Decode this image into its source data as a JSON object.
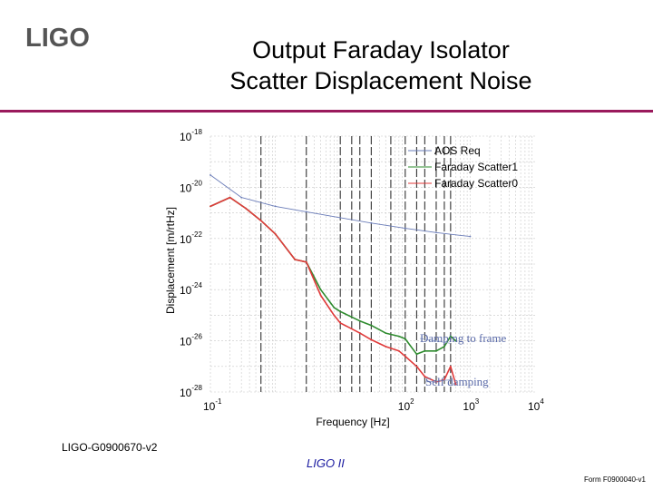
{
  "header": {
    "logo_text": "LIGO",
    "title_line1": "Output Faraday Isolator",
    "title_line2": "Scatter Displacement Noise"
  },
  "footer": {
    "doc_id": "LIGO-G0900670-v2",
    "center_text": "LIGO II",
    "form_id": "Form F0900040-v1"
  },
  "colors": {
    "accent_rule": "#9a1a5c",
    "logo": "#555555"
  },
  "chart_data": {
    "type": "line",
    "xscale": "log",
    "yscale": "log",
    "xlim": [
      0.1,
      10000
    ],
    "ylim": [
      1e-28,
      1e-18
    ],
    "xlabel": "Frequency [Hz]",
    "ylabel": "Displacement [m/rtHz]",
    "x_ticks": [
      {
        "value": 0.1,
        "base": "10",
        "exp": "-1"
      },
      {
        "value": 100,
        "base": "10",
        "exp": "2"
      },
      {
        "value": 1000,
        "base": "10",
        "exp": "3"
      },
      {
        "value": 10000,
        "base": "10",
        "exp": "4"
      }
    ],
    "y_ticks": [
      {
        "value": 1e-18,
        "base": "10",
        "exp": "-18"
      },
      {
        "value": 1e-20,
        "base": "10",
        "exp": "-20"
      },
      {
        "value": 1e-22,
        "base": "10",
        "exp": "-22"
      },
      {
        "value": 1e-24,
        "base": "10",
        "exp": "-24"
      },
      {
        "value": 1e-26,
        "base": "10",
        "exp": "-26"
      },
      {
        "value": 1e-28,
        "base": "10",
        "exp": "-28"
      }
    ],
    "grid": true,
    "legend_position": "top-right",
    "series": [
      {
        "name": "AOS Req",
        "color": "#6a7cb8",
        "x": [
          0.1,
          0.3,
          1,
          3,
          10,
          30,
          100,
          300,
          1000
        ],
        "y": [
          3e-20,
          4e-21,
          1.8e-21,
          1.1e-21,
          6.5e-22,
          4e-22,
          2.5e-22,
          1.7e-22,
          1.2e-22
        ]
      },
      {
        "name": "Faraday Scatter1",
        "color": "#2e8b2e",
        "x": [
          0.1,
          0.2,
          0.35,
          0.6,
          1,
          2,
          3,
          5,
          8,
          10,
          20,
          30,
          50,
          80,
          100,
          150,
          200,
          300,
          400,
          500,
          600
        ],
        "y": [
          1.8e-21,
          4e-21,
          1.5e-21,
          5e-22,
          1.5e-22,
          1.5e-23,
          1.2e-23,
          1e-24,
          2e-25,
          1.4e-25,
          6e-26,
          4e-26,
          2e-26,
          1.5e-26,
          1.2e-26,
          3e-27,
          4e-27,
          4e-27,
          6e-27,
          1.5e-26,
          1e-26
        ]
      },
      {
        "name": "Faraday Scatter0",
        "color": "#e03a3a",
        "x": [
          0.1,
          0.2,
          0.35,
          0.6,
          1,
          2,
          3,
          5,
          8,
          10,
          20,
          30,
          50,
          80,
          100,
          150,
          200,
          300,
          400,
          500,
          600
        ],
        "y": [
          1.8e-21,
          4e-21,
          1.5e-21,
          5e-22,
          1.5e-22,
          1.5e-23,
          1.2e-23,
          6e-25,
          1e-25,
          5e-26,
          2e-26,
          1.1e-26,
          6e-27,
          4e-27,
          2.5e-27,
          1e-27,
          4e-28,
          2.5e-28,
          3e-28,
          1e-27,
          2e-28
        ]
      }
    ],
    "vertical_lines_x": [
      0.6,
      3,
      10,
      15,
      20,
      30,
      60,
      100,
      150,
      200,
      300,
      400,
      500
    ],
    "annotations": [
      {
        "text": "Damping to frame",
        "points_to_x": 500,
        "points_to_y": 8e-27
      },
      {
        "text": "Self damping",
        "points_to_x": 500,
        "points_to_y": 3e-28
      }
    ]
  }
}
